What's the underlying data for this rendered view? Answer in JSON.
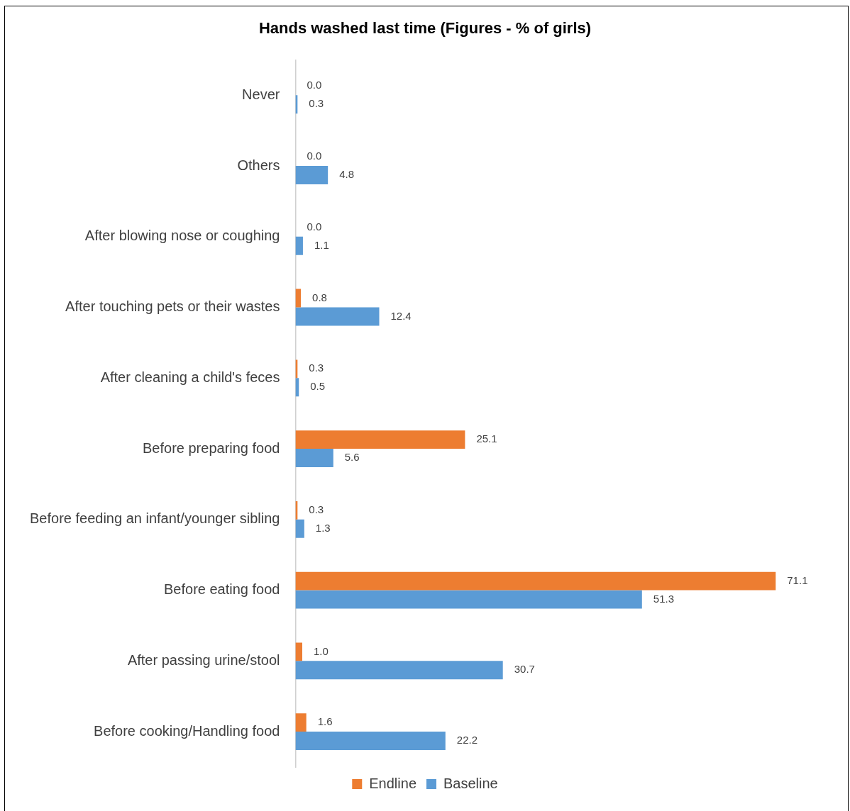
{
  "chart_data": {
    "type": "bar",
    "orientation": "horizontal",
    "title": "Hands washed last time (Figures - % of girls)",
    "categories": [
      "Never",
      "Others",
      "After blowing nose or coughing",
      "After touching pets or their wastes",
      "After cleaning a child's feces",
      "Before preparing food",
      "Before feeding an infant/younger sibling",
      "Before eating food",
      "After passing urine/stool",
      "Before cooking/Handling food"
    ],
    "series": [
      {
        "name": "Endline",
        "color": "#ed7d31",
        "values": [
          0.0,
          0.0,
          0.0,
          0.8,
          0.3,
          25.1,
          0.3,
          71.1,
          1.0,
          1.6
        ],
        "value_labels": [
          "0.0",
          "0.0",
          "0.0",
          "0.8",
          "0.3",
          "25.1",
          "0.3",
          "71.1",
          "1.0",
          "1.6"
        ]
      },
      {
        "name": "Baseline",
        "color": "#5b9bd5",
        "values": [
          0.3,
          4.8,
          1.1,
          12.4,
          0.5,
          5.6,
          1.3,
          51.3,
          30.7,
          22.2
        ],
        "value_labels": [
          "0.3",
          "4.8",
          "1.1",
          "12.4",
          "0.5",
          "5.6",
          "1.3",
          "51.3",
          "30.7",
          "22.2"
        ]
      }
    ],
    "grid": false,
    "legend": "bottom",
    "tick_labels": "y"
  }
}
